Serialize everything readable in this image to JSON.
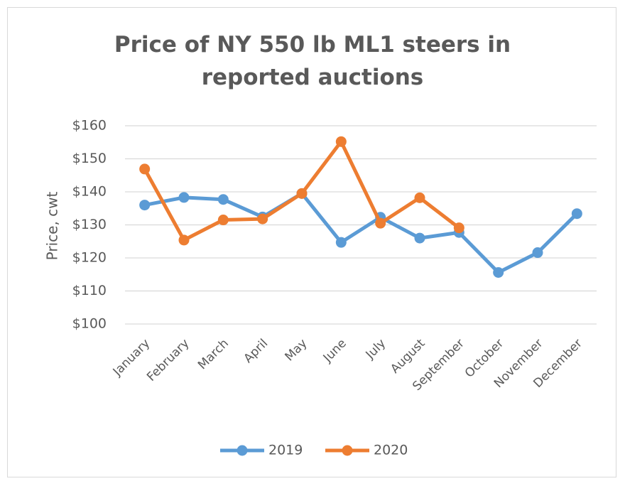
{
  "chart_data": {
    "type": "line",
    "title_line1": "Price of NY 550 lb ML1 steers in",
    "title_line2": "reported auctions",
    "xlabel": "",
    "ylabel": "Price, cwt",
    "categories": [
      "January",
      "February",
      "March",
      "April",
      "May",
      "June",
      "July",
      "August",
      "September",
      "October",
      "November",
      "December"
    ],
    "y_ticks": [
      "$100",
      "$110",
      "$120",
      "$130",
      "$140",
      "$150",
      "$160"
    ],
    "ylim": [
      100,
      160
    ],
    "grid": true,
    "legend_position": "bottom",
    "series": [
      {
        "name": "2019",
        "color": "#5b9bd5",
        "values": [
          136.0,
          138.3,
          137.7,
          132.4,
          139.5,
          124.7,
          132.3,
          126.0,
          127.7,
          115.6,
          121.6,
          133.4
        ]
      },
      {
        "name": "2020",
        "color": "#ed7d31",
        "values": [
          146.9,
          125.4,
          131.5,
          131.8,
          139.5,
          155.2,
          130.5,
          138.2,
          129.1,
          null,
          null,
          null
        ]
      }
    ]
  }
}
